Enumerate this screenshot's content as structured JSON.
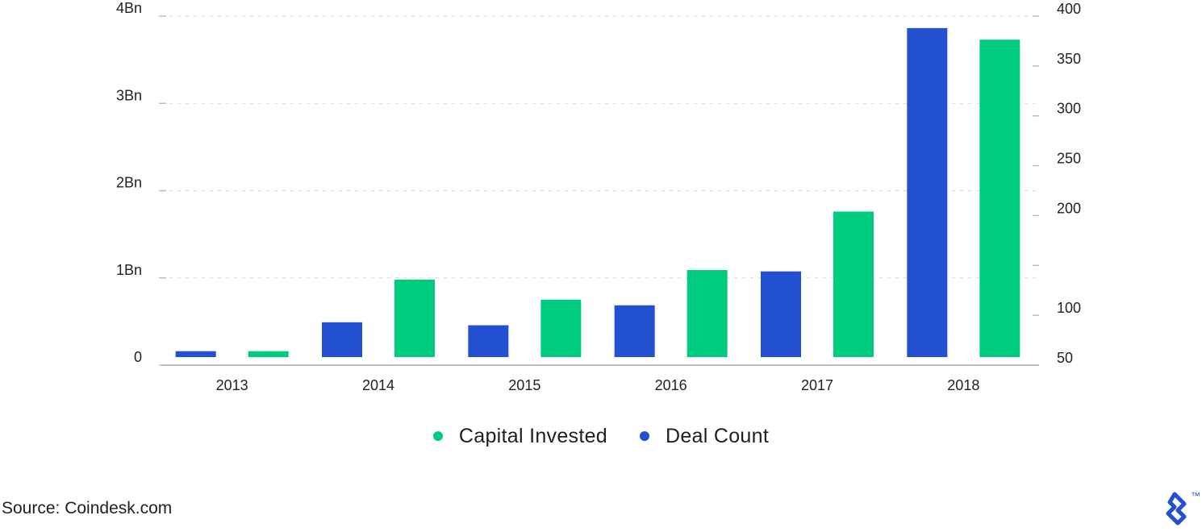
{
  "chart_data": {
    "type": "bar",
    "categories": [
      "2013",
      "2014",
      "2015",
      "2016",
      "2017",
      "2018"
    ],
    "series": [
      {
        "name": "Deal Count",
        "axis": "right",
        "values": [
          64,
          93,
          90,
          110,
          144,
          388
        ]
      },
      {
        "name": "Capital Invested",
        "axis": "left",
        "values": [
          0.16,
          0.98,
          0.75,
          1.09,
          1.76,
          3.73
        ]
      }
    ],
    "y_left": {
      "ylim": [
        0,
        4
      ],
      "ticks": [
        0,
        1,
        2,
        3,
        4
      ],
      "tick_labels": [
        "0",
        "1Bn",
        "2Bn",
        "3Bn",
        "4Bn"
      ]
    },
    "y_right": {
      "ylim": [
        50,
        400
      ],
      "ticks": [
        50,
        100,
        150,
        200,
        250,
        300,
        350,
        400
      ],
      "tick_labels": [
        "50",
        "100",
        "",
        "200",
        "250",
        "300",
        "350",
        "400"
      ]
    },
    "grid": true,
    "legend_position": "bottom-center",
    "colors": {
      "Capital Invested": "#00cc7f",
      "Deal Count": "#2350d1",
      "grid": "#d9d9d9",
      "axis": "#bdbdbd"
    }
  },
  "legend": {
    "items": [
      {
        "label": "Capital Invested",
        "color": "#00cc7f"
      },
      {
        "label": "Deal Count",
        "color": "#2350d1"
      }
    ]
  },
  "source_text": "Source: Coindesk.com",
  "logo": {
    "icon": "toptal-logo-icon",
    "trademark": "™",
    "color": "#2350d1"
  }
}
